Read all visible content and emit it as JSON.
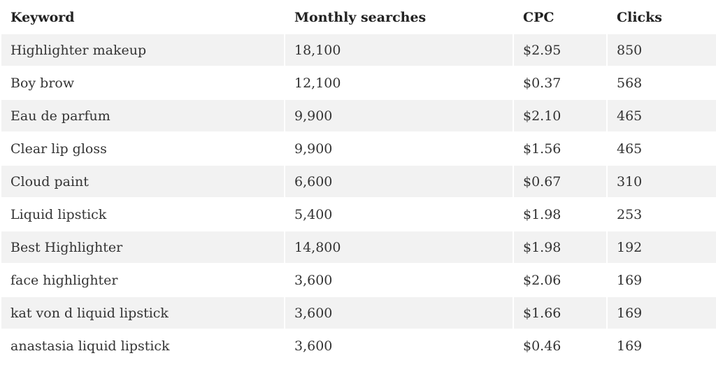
{
  "table": {
    "headers": {
      "keyword": "Keyword",
      "searches": "Monthly searches",
      "cpc": "CPC",
      "clicks": "Clicks"
    },
    "rows": [
      {
        "keyword": "Highlighter makeup",
        "searches": "18,100",
        "cpc": "$2.95",
        "clicks": "850"
      },
      {
        "keyword": "Boy brow",
        "searches": "12,100",
        "cpc": "$0.37",
        "clicks": "568"
      },
      {
        "keyword": "Eau de parfum",
        "searches": "9,900",
        "cpc": "$2.10",
        "clicks": "465"
      },
      {
        "keyword": "Clear lip gloss",
        "searches": "9,900",
        "cpc": "$1.56",
        "clicks": "465"
      },
      {
        "keyword": "Cloud paint",
        "searches": "6,600",
        "cpc": "$0.67",
        "clicks": "310"
      },
      {
        "keyword": "Liquid lipstick",
        "searches": "5,400",
        "cpc": "$1.98",
        "clicks": "253"
      },
      {
        "keyword": "Best Highlighter",
        "searches": "14,800",
        "cpc": "$1.98",
        "clicks": "192"
      },
      {
        "keyword": "face highlighter",
        "searches": "3,600",
        "cpc": "$2.06",
        "clicks": "169"
      },
      {
        "keyword": "kat von d liquid lipstick",
        "searches": "3,600",
        "cpc": "$1.66",
        "clicks": "169"
      },
      {
        "keyword": "anastasia liquid lipstick",
        "searches": "3,600",
        "cpc": "$0.46",
        "clicks": "169"
      }
    ]
  },
  "colors": {
    "stripe": "#f2f2f2",
    "background": "#ffffff",
    "text": "#333333"
  }
}
